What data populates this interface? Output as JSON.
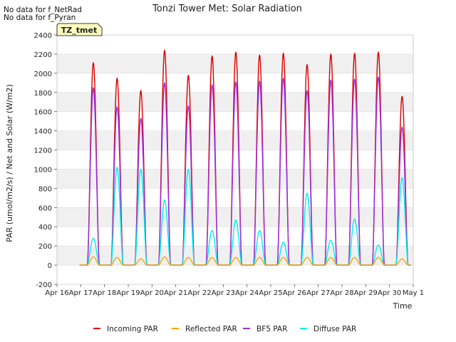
{
  "chart_data": {
    "type": "line",
    "title": "Tonzi Tower Met: Solar Radiation",
    "xlabel": "Time",
    "ylabel": "PAR (umol/m2/s) / Net and Solar (W/m2)",
    "ylim": [
      -200,
      2400
    ],
    "yticks": [
      -200,
      0,
      200,
      400,
      600,
      800,
      1000,
      1200,
      1400,
      1600,
      1800,
      2000,
      2200,
      2400
    ],
    "xlim": [
      16,
      31
    ],
    "xticks": [
      16,
      17,
      18,
      19,
      20,
      21,
      22,
      23,
      24,
      25,
      26,
      27,
      28,
      29,
      30,
      31
    ],
    "xtick_labels": [
      "Apr 16",
      "Apr 17",
      "Apr 18",
      "Apr 19",
      "Apr 20",
      "Apr 21",
      "Apr 22",
      "Apr 23",
      "Apr 24",
      "Apr 25",
      "Apr 26",
      "Apr 27",
      "Apr 28",
      "Apr 29",
      "Apr 30",
      "May 1"
    ],
    "x_unit": "day of April",
    "day_window": [
      0.28,
      0.78
    ],
    "notes": [
      "No data for f_NetRad",
      "No data for f_Pyran"
    ],
    "tag_label": "TZ_tmet",
    "series": [
      {
        "name": "Incoming PAR",
        "color": "#dd0000",
        "daily_peaks": [
          2110,
          1950,
          1820,
          2240,
          1980,
          2180,
          2220,
          2190,
          2210,
          2090,
          2200,
          2210,
          2220,
          1760
        ]
      },
      {
        "name": "Reflected PAR",
        "color": "#ffa500",
        "daily_peaks": [
          85,
          80,
          65,
          85,
          80,
          80,
          80,
          80,
          80,
          80,
          80,
          80,
          80,
          65
        ]
      },
      {
        "name": "BF5 PAR",
        "color": "#9a30e0",
        "daily_peaks": [
          1850,
          1650,
          1530,
          1900,
          1660,
          1880,
          1910,
          1920,
          1950,
          1820,
          1930,
          1940,
          1960,
          1440
        ]
      },
      {
        "name": "Diffuse PAR",
        "color": "#00eeee",
        "daily_peaks": [
          280,
          1020,
          1000,
          680,
          1000,
          360,
          470,
          360,
          240,
          750,
          260,
          480,
          210,
          910
        ]
      }
    ]
  }
}
